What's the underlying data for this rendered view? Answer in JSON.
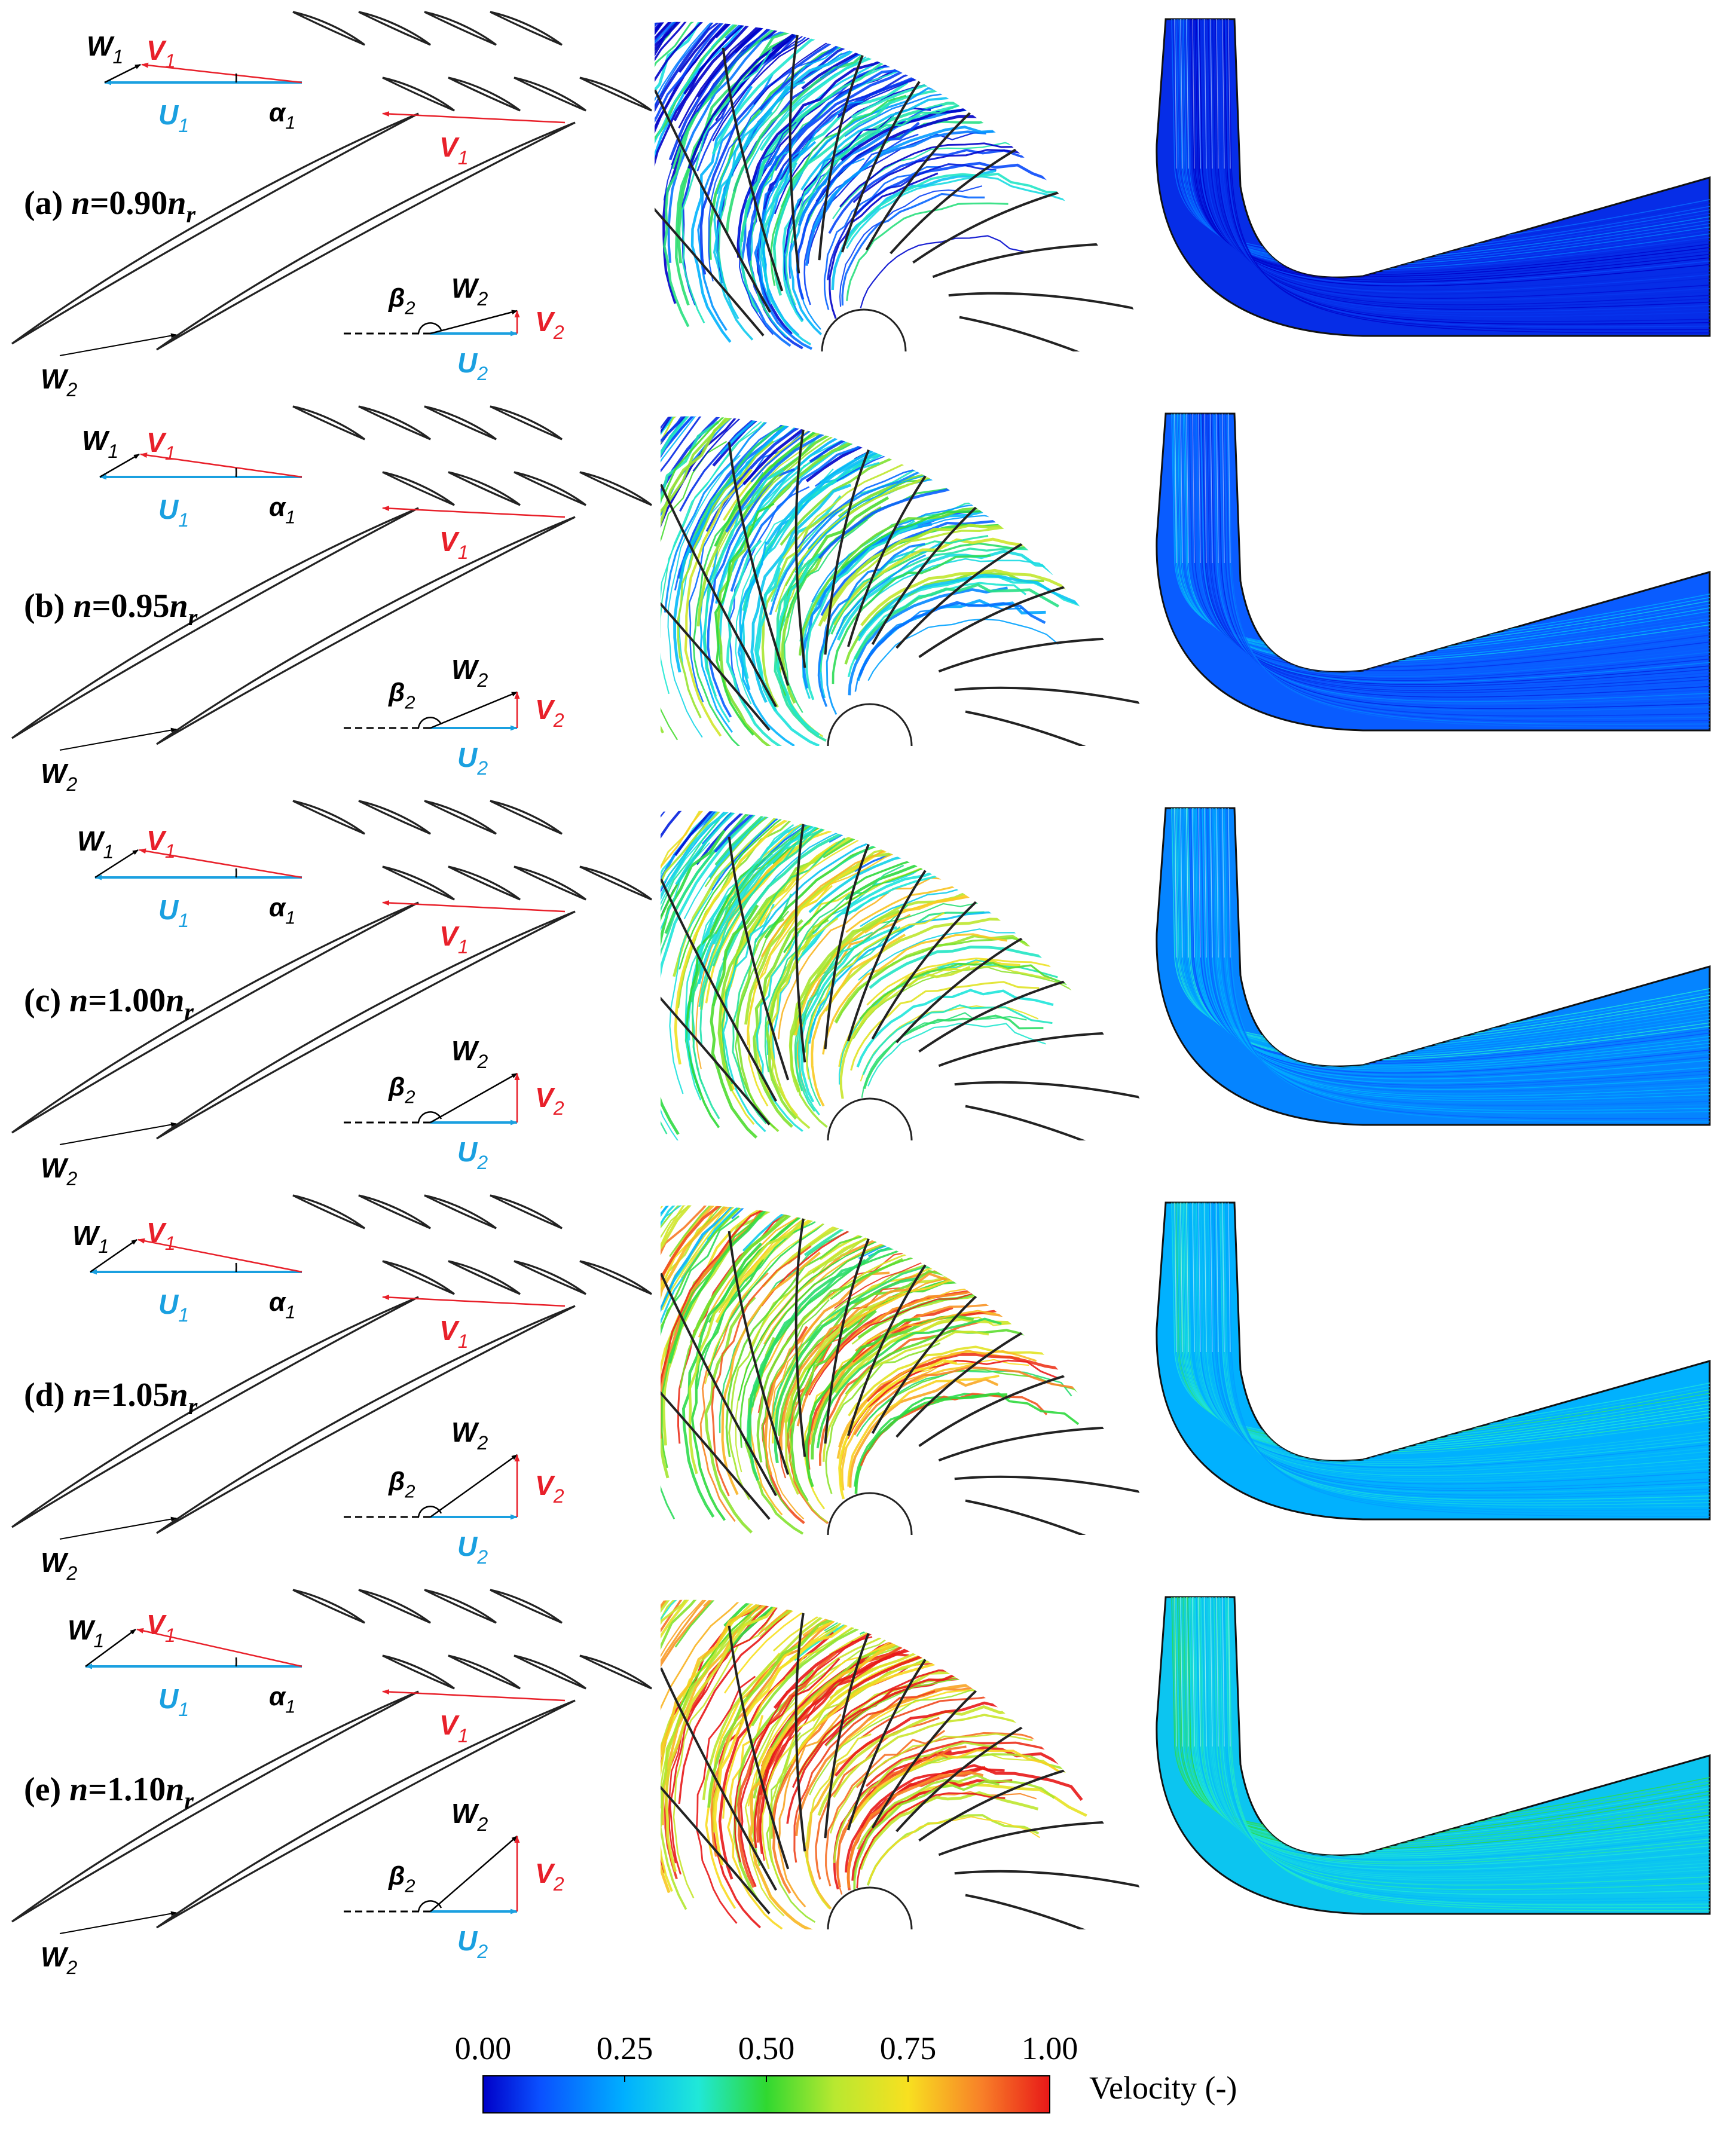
{
  "colors": {
    "w_vector": "#000000",
    "v_vector": "#e8202a",
    "u_vector": "#1aa0e0",
    "blade": "#222222",
    "colormap_stops": [
      "#0000c8",
      "#0a50ff",
      "#00b0ff",
      "#20e8d8",
      "#30d830",
      "#b8e830",
      "#f8e020",
      "#f88028",
      "#e81818"
    ]
  },
  "vectors": {
    "W1": "W",
    "W1_sub": "1",
    "V1": "V",
    "V1_sub": "1",
    "U1": "U",
    "U1_sub": "1",
    "alpha1": "α",
    "alpha1_sub": "1",
    "W2": "W",
    "W2_sub": "2",
    "V2": "V",
    "V2_sub": "2",
    "U2": "U",
    "U2_sub": "2",
    "beta2": "β",
    "beta2_sub": "2"
  },
  "panels": [
    {
      "letter": "(a)",
      "n_var": "n",
      "eq": "=",
      "value": "0.90",
      "n_sub": "r",
      "flow_level": 0.2
    },
    {
      "letter": "(b)",
      "n_var": "n",
      "eq": "=",
      "value": "0.95",
      "n_sub": "r",
      "flow_level": 0.4
    },
    {
      "letter": "(c)",
      "n_var": "n",
      "eq": "=",
      "value": "1.00",
      "n_sub": "r",
      "flow_level": 0.55
    },
    {
      "letter": "(d)",
      "n_var": "n",
      "eq": "=",
      "value": "1.05",
      "n_sub": "r",
      "flow_level": 0.72
    },
    {
      "letter": "(e)",
      "n_var": "n",
      "eq": "=",
      "value": "1.10",
      "n_sub": "r",
      "flow_level": 0.85
    }
  ],
  "colorbar": {
    "ticks": [
      "0.00",
      "0.25",
      "0.50",
      "0.75",
      "1.00"
    ],
    "title": "Velocity (-)",
    "range": [
      0,
      1
    ]
  }
}
